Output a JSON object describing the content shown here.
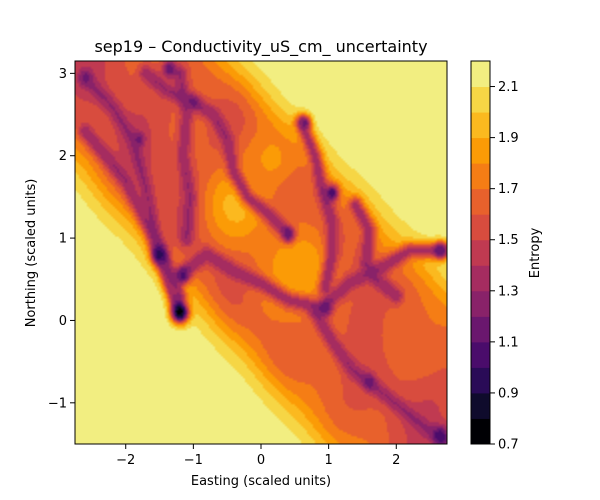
{
  "chart_data": {
    "type": "contour",
    "title": "sep19 – Conductivity_uS_cm_ uncertainty",
    "xlabel": "Easting (scaled units)",
    "ylabel": "Northing (scaled units)",
    "xlim": [
      -2.75,
      2.75
    ],
    "ylim": [
      -1.5,
      3.15
    ],
    "xticks": [
      -2,
      -1,
      0,
      1,
      2
    ],
    "xtick_labels": [
      "−2",
      "−1",
      "0",
      "1",
      "2"
    ],
    "yticks": [
      -1,
      0,
      1,
      2,
      3
    ],
    "ytick_labels": [
      "−1",
      "0",
      "1",
      "2",
      "3"
    ],
    "grid": false,
    "colormap": "inferno",
    "colorbar": {
      "label": "Entropy",
      "range": [
        0.7,
        2.2
      ],
      "levels": [
        0.7,
        0.8,
        0.9,
        1.0,
        1.1,
        1.2,
        1.3,
        1.4,
        1.5,
        1.6,
        1.7,
        1.8,
        1.9,
        2.0,
        2.1,
        2.2
      ],
      "ticks": [
        0.7,
        0.9,
        1.1,
        1.3,
        1.5,
        1.7,
        1.9,
        2.1
      ],
      "tick_labels": [
        "0.7",
        "0.9",
        "1.1",
        "1.3",
        "1.5",
        "1.7",
        "1.9",
        "2.1"
      ],
      "colors": [
        "#000004",
        "#0f0b2c",
        "#2a0b57",
        "#4a0c6b",
        "#6a176e",
        "#892269",
        "#a52c60",
        "#c03a51",
        "#d84c3e",
        "#e8612c",
        "#f57d15",
        "#fb9b06",
        "#fbb91f",
        "#f6d645",
        "#f2ee81"
      ]
    },
    "ridge_centerlines": [
      [
        [
          -2.55,
          2.9
        ],
        [
          -2.2,
          2.6
        ],
        [
          -1.9,
          2.2
        ],
        [
          -1.7,
          1.6
        ],
        [
          -1.5,
          0.8
        ],
        [
          -1.3,
          0.3
        ],
        [
          -1.2,
          0.1
        ]
      ],
      [
        [
          -2.6,
          2.3
        ],
        [
          -2.3,
          2.0
        ],
        [
          -2.0,
          1.7
        ],
        [
          -1.7,
          1.2
        ],
        [
          -1.4,
          0.7
        ],
        [
          -1.2,
          0.3
        ]
      ],
      [
        [
          -1.2,
          0.55
        ],
        [
          -0.8,
          0.8
        ],
        [
          -0.4,
          0.6
        ],
        [
          0.0,
          0.45
        ],
        [
          0.4,
          0.25
        ],
        [
          0.9,
          0.15
        ],
        [
          1.3,
          0.45
        ],
        [
          1.8,
          0.65
        ],
        [
          2.2,
          0.85
        ],
        [
          2.7,
          0.85
        ]
      ],
      [
        [
          0.8,
          0.1
        ],
        [
          1.05,
          -0.25
        ],
        [
          1.35,
          -0.6
        ],
        [
          1.6,
          -0.75
        ],
        [
          1.9,
          -0.95
        ],
        [
          2.2,
          -1.15
        ],
        [
          2.5,
          -1.35
        ],
        [
          2.7,
          -1.45
        ]
      ],
      [
        [
          -1.7,
          3.0
        ],
        [
          -1.4,
          2.8
        ],
        [
          -1.0,
          2.65
        ],
        [
          -0.7,
          2.5
        ],
        [
          -0.5,
          2.2
        ],
        [
          -0.4,
          1.8
        ],
        [
          -0.2,
          1.5
        ],
        [
          0.1,
          1.3
        ],
        [
          0.4,
          1.05
        ]
      ],
      [
        [
          -1.2,
          3.0
        ],
        [
          -1.1,
          2.5
        ],
        [
          -1.15,
          2.0
        ],
        [
          -1.05,
          1.5
        ],
        [
          -1.1,
          1.0
        ]
      ],
      [
        [
          0.6,
          2.4
        ],
        [
          0.8,
          2.0
        ],
        [
          0.9,
          1.6
        ],
        [
          1.05,
          1.2
        ],
        [
          1.05,
          0.8
        ],
        [
          0.95,
          0.4
        ]
      ],
      [
        [
          1.4,
          1.4
        ],
        [
          1.6,
          1.1
        ],
        [
          1.55,
          0.7
        ],
        [
          1.7,
          0.5
        ],
        [
          2.0,
          0.3
        ]
      ]
    ],
    "minima": [
      {
        "x": -1.2,
        "y": 0.1,
        "z": 0.75,
        "r": 0.09
      },
      {
        "x": -1.5,
        "y": 0.8,
        "z": 0.95,
        "r": 0.08
      },
      {
        "x": -1.15,
        "y": 0.55,
        "z": 1.05,
        "r": 0.07
      },
      {
        "x": 1.05,
        "y": 1.55,
        "z": 1.0,
        "r": 0.07
      },
      {
        "x": 0.95,
        "y": 0.15,
        "z": 1.1,
        "r": 0.07
      },
      {
        "x": 2.65,
        "y": -1.4,
        "z": 1.0,
        "r": 0.08
      },
      {
        "x": 2.65,
        "y": 0.85,
        "z": 1.1,
        "r": 0.07
      },
      {
        "x": 0.4,
        "y": 1.05,
        "z": 1.1,
        "r": 0.06
      },
      {
        "x": -2.6,
        "y": 2.95,
        "z": 1.15,
        "r": 0.07
      },
      {
        "x": -1.0,
        "y": 2.65,
        "z": 1.15,
        "r": 0.06
      },
      {
        "x": 0.65,
        "y": 2.4,
        "z": 1.15,
        "r": 0.06
      },
      {
        "x": -1.8,
        "y": 2.2,
        "z": 1.15,
        "r": 0.06
      },
      {
        "x": -1.35,
        "y": 3.05,
        "z": 1.1,
        "r": 0.07
      },
      {
        "x": 1.6,
        "y": -0.75,
        "z": 1.1,
        "r": 0.06
      }
    ],
    "mid_bumps": [
      {
        "x": -0.35,
        "y": 1.4,
        "z": 1.95,
        "r": 0.35
      },
      {
        "x": 0.6,
        "y": 0.6,
        "z": 1.9,
        "r": 0.45
      },
      {
        "x": 0.2,
        "y": 2.0,
        "z": 1.85,
        "r": 0.3
      },
      {
        "x": 2.2,
        "y": -0.2,
        "z": 1.7,
        "r": 0.4
      }
    ]
  }
}
